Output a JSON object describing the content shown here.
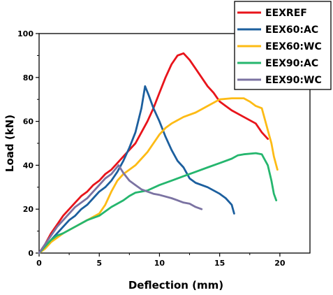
{
  "chart_data": {
    "type": "line",
    "xlabel": "Deflection (mm)",
    "ylabel": "Load (kN)",
    "xlim": [
      0,
      22.5
    ],
    "ylim": [
      0,
      100
    ],
    "xticks": [
      0,
      5,
      10,
      15,
      20
    ],
    "yticks": [
      0,
      20,
      40,
      60,
      80,
      100
    ],
    "xtick_labels": [
      "0",
      "5",
      "10",
      "15",
      "20"
    ],
    "ytick_labels": [
      "0",
      "20",
      "40",
      "60",
      "80",
      "100"
    ],
    "grid": false,
    "legend_position": "top-right",
    "series": [
      {
        "name": "EEXREF",
        "color": "#e8141b",
        "points": [
          [
            0,
            0
          ],
          [
            0.5,
            4
          ],
          [
            1,
            9
          ],
          [
            1.5,
            13
          ],
          [
            2,
            17
          ],
          [
            2.5,
            20
          ],
          [
            3,
            23
          ],
          [
            3.5,
            26
          ],
          [
            4,
            28
          ],
          [
            4.5,
            31
          ],
          [
            5,
            33
          ],
          [
            5.5,
            36
          ],
          [
            6,
            38
          ],
          [
            6.5,
            41
          ],
          [
            7,
            44
          ],
          [
            7.5,
            47
          ],
          [
            8,
            50
          ],
          [
            8.5,
            55
          ],
          [
            9,
            60
          ],
          [
            9.5,
            66
          ],
          [
            10,
            73
          ],
          [
            10.5,
            80
          ],
          [
            11,
            86
          ],
          [
            11.5,
            90
          ],
          [
            12,
            91
          ],
          [
            12.5,
            88
          ],
          [
            13,
            84
          ],
          [
            13.5,
            80
          ],
          [
            14,
            76
          ],
          [
            14.5,
            73
          ],
          [
            15,
            69
          ],
          [
            15.5,
            67
          ],
          [
            16,
            65
          ],
          [
            17,
            62
          ],
          [
            18,
            59
          ],
          [
            18.5,
            55
          ],
          [
            19,
            52
          ]
        ]
      },
      {
        "name": "EEX60:AC",
        "color": "#1c5f9e",
        "points": [
          [
            0,
            0
          ],
          [
            0.5,
            3
          ],
          [
            1,
            6
          ],
          [
            1.5,
            9
          ],
          [
            2,
            12
          ],
          [
            2.5,
            15
          ],
          [
            3,
            17
          ],
          [
            3.5,
            20
          ],
          [
            4,
            22
          ],
          [
            4.5,
            25
          ],
          [
            5,
            28
          ],
          [
            5.5,
            30
          ],
          [
            6,
            33
          ],
          [
            6.5,
            37
          ],
          [
            7,
            42
          ],
          [
            7.5,
            48
          ],
          [
            8,
            55
          ],
          [
            8.5,
            66
          ],
          [
            8.8,
            76
          ],
          [
            9.1,
            72
          ],
          [
            9.5,
            66
          ],
          [
            10,
            60
          ],
          [
            10.5,
            53
          ],
          [
            11,
            47
          ],
          [
            11.5,
            42
          ],
          [
            12,
            39
          ],
          [
            12.2,
            37
          ],
          [
            12.5,
            34
          ],
          [
            13,
            32
          ],
          [
            14,
            30
          ],
          [
            15,
            27
          ],
          [
            15.5,
            25
          ],
          [
            16,
            22
          ],
          [
            16.2,
            18
          ]
        ]
      },
      {
        "name": "EEX60:WC",
        "color": "#fdbb15",
        "points": [
          [
            0,
            0
          ],
          [
            0.5,
            2
          ],
          [
            1,
            5
          ],
          [
            1.5,
            7
          ],
          [
            2,
            9
          ],
          [
            3,
            12
          ],
          [
            4,
            15
          ],
          [
            5,
            18
          ],
          [
            5.5,
            22
          ],
          [
            6,
            28
          ],
          [
            6.5,
            33
          ],
          [
            7,
            36
          ],
          [
            7.5,
            38
          ],
          [
            8,
            40
          ],
          [
            8.5,
            43
          ],
          [
            9,
            46
          ],
          [
            9.5,
            50
          ],
          [
            10,
            54
          ],
          [
            10.5,
            57
          ],
          [
            11,
            59
          ],
          [
            12,
            62
          ],
          [
            13,
            64
          ],
          [
            14,
            67
          ],
          [
            15,
            70
          ],
          [
            16,
            70.5
          ],
          [
            17,
            70.5
          ],
          [
            17.5,
            69
          ],
          [
            18,
            67
          ],
          [
            18.5,
            66
          ],
          [
            19,
            56
          ],
          [
            19.3,
            50
          ],
          [
            19.5,
            44
          ],
          [
            19.8,
            38
          ]
        ]
      },
      {
        "name": "EEX90:AC",
        "color": "#25b66e",
        "points": [
          [
            0,
            0
          ],
          [
            0.5,
            3
          ],
          [
            1,
            6
          ],
          [
            1.5,
            8
          ],
          [
            2,
            9
          ],
          [
            3,
            12
          ],
          [
            4,
            15
          ],
          [
            5,
            17
          ],
          [
            6,
            21
          ],
          [
            7,
            24
          ],
          [
            7.5,
            26
          ],
          [
            8,
            27.5
          ],
          [
            9,
            28.5
          ],
          [
            10,
            31
          ],
          [
            11,
            33
          ],
          [
            12,
            35
          ],
          [
            13,
            37
          ],
          [
            14,
            39
          ],
          [
            15,
            41
          ],
          [
            16,
            43
          ],
          [
            16.5,
            44.5
          ],
          [
            17,
            45
          ],
          [
            18,
            45.5
          ],
          [
            18.5,
            45
          ],
          [
            19,
            40
          ],
          [
            19.3,
            33
          ],
          [
            19.5,
            27
          ],
          [
            19.7,
            24
          ]
        ]
      },
      {
        "name": "EEX90:WC",
        "color": "#7b73a2",
        "points": [
          [
            0,
            0
          ],
          [
            0.5,
            4
          ],
          [
            1,
            8
          ],
          [
            1.5,
            12
          ],
          [
            2,
            15
          ],
          [
            2.5,
            18
          ],
          [
            3,
            21
          ],
          [
            3.5,
            23
          ],
          [
            4,
            25
          ],
          [
            4.5,
            28
          ],
          [
            5,
            31
          ],
          [
            5.5,
            34
          ],
          [
            6,
            36
          ],
          [
            6.3,
            38
          ],
          [
            6.6,
            40
          ],
          [
            7,
            36.5
          ],
          [
            7.5,
            33
          ],
          [
            8,
            31
          ],
          [
            8.5,
            29
          ],
          [
            9,
            28
          ],
          [
            9.5,
            27
          ],
          [
            10,
            26.5
          ],
          [
            11,
            25
          ],
          [
            11.5,
            24
          ],
          [
            12,
            23
          ],
          [
            12.5,
            22.5
          ],
          [
            13,
            21
          ],
          [
            13.5,
            20
          ]
        ]
      }
    ]
  }
}
